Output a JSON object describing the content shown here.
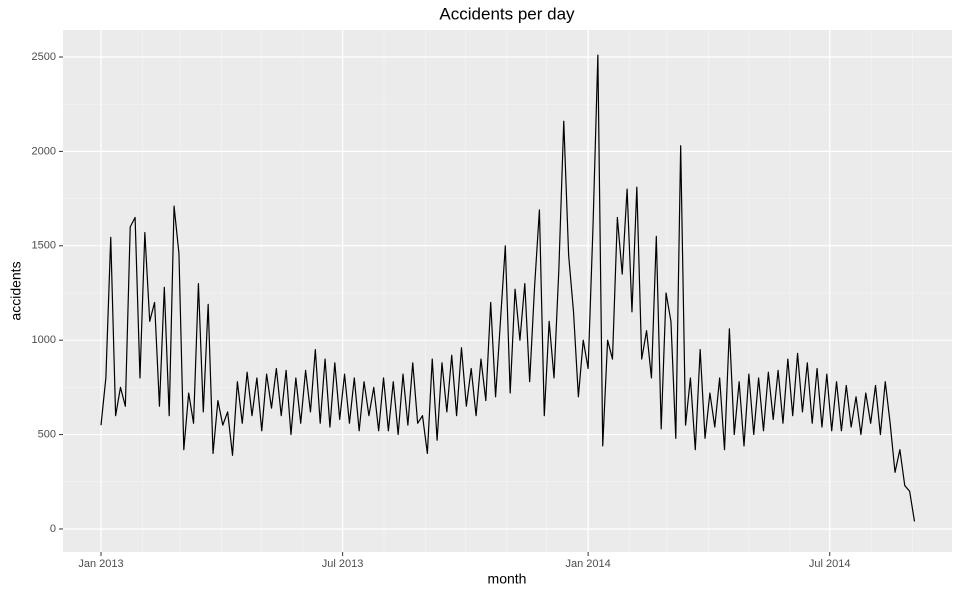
{
  "chart_data": {
    "type": "line",
    "title": "Accidents per day",
    "x_label": "month",
    "y_label": "accidents",
    "x": [
      2013.0,
      2013.01,
      2013.02,
      2013.03,
      2013.04,
      2013.05,
      2013.06,
      2013.07,
      2013.08,
      2013.09,
      2013.1,
      2013.11,
      2013.12,
      2013.13,
      2013.14,
      2013.15,
      2013.16,
      2013.17,
      2013.18,
      2013.19,
      2013.2,
      2013.21,
      2013.22,
      2013.23,
      2013.24,
      2013.25,
      2013.26,
      2013.27,
      2013.28,
      2013.29,
      2013.3,
      2013.31,
      2013.32,
      2013.33,
      2013.34,
      2013.35,
      2013.36,
      2013.37,
      2013.38,
      2013.39,
      2013.4,
      2013.41,
      2013.42,
      2013.43,
      2013.44,
      2013.45,
      2013.46,
      2013.47,
      2013.48,
      2013.49,
      2013.5,
      2013.51,
      2013.52,
      2013.53,
      2013.54,
      2013.55,
      2013.56,
      2013.57,
      2013.58,
      2013.59,
      2013.6,
      2013.61,
      2013.62,
      2013.63,
      2013.64,
      2013.65,
      2013.66,
      2013.67,
      2013.68,
      2013.69,
      2013.7,
      2013.71,
      2013.72,
      2013.73,
      2013.74,
      2013.75,
      2013.76,
      2013.77,
      2013.78,
      2013.79,
      2013.8,
      2013.81,
      2013.82,
      2013.83,
      2013.84,
      2013.85,
      2013.86,
      2013.87,
      2013.88,
      2013.89,
      2013.9,
      2013.91,
      2013.92,
      2013.93,
      2013.94,
      2013.95,
      2013.96,
      2013.97,
      2013.98,
      2013.99,
      2014.0,
      2014.01,
      2014.02,
      2014.03,
      2014.04,
      2014.05,
      2014.06,
      2014.07,
      2014.08,
      2014.09,
      2014.1,
      2014.11,
      2014.12,
      2014.13,
      2014.14,
      2014.15,
      2014.16,
      2014.17,
      2014.18,
      2014.19,
      2014.2,
      2014.21,
      2014.22,
      2014.23,
      2014.24,
      2014.25,
      2014.26,
      2014.27,
      2014.28,
      2014.29,
      2014.3,
      2014.31,
      2014.32,
      2014.33,
      2014.34,
      2014.35,
      2014.36,
      2014.37,
      2014.38,
      2014.39,
      2014.4,
      2014.41,
      2014.42,
      2014.43,
      2014.44,
      2014.45,
      2014.46,
      2014.47,
      2014.48,
      2014.49,
      2014.5,
      2014.51,
      2014.52,
      2014.53,
      2014.54,
      2014.55,
      2014.56,
      2014.57,
      2014.58,
      2014.59,
      2014.6,
      2014.61,
      2014.62,
      2014.63,
      2014.64,
      2014.65,
      2014.66,
      2014.67
    ],
    "series": [
      {
        "name": "accidents",
        "color": "#000000",
        "values": [
          550,
          800,
          1545,
          600,
          750,
          650,
          1600,
          1650,
          800,
          1570,
          1100,
          1200,
          650,
          1280,
          600,
          1710,
          1460,
          420,
          720,
          560,
          1300,
          620,
          1190,
          400,
          680,
          550,
          620,
          390,
          780,
          560,
          830,
          600,
          800,
          520,
          820,
          640,
          850,
          600,
          840,
          500,
          800,
          560,
          840,
          620,
          950,
          560,
          900,
          540,
          880,
          580,
          820,
          560,
          800,
          520,
          780,
          600,
          750,
          520,
          800,
          520,
          780,
          500,
          820,
          550,
          880,
          560,
          600,
          400,
          900,
          470,
          880,
          620,
          920,
          600,
          960,
          650,
          850,
          600,
          900,
          680,
          1200,
          700,
          1100,
          1500,
          720,
          1270,
          1000,
          1300,
          780,
          1280,
          1690,
          600,
          1100,
          800,
          1380,
          2160,
          1450,
          1150,
          700,
          1000,
          850,
          1600,
          2510,
          440,
          1000,
          900,
          1650,
          1350,
          1800,
          1150,
          1810,
          900,
          1050,
          800,
          1550,
          530,
          1250,
          1100,
          480,
          2030,
          550,
          800,
          420,
          950,
          480,
          720,
          540,
          800,
          420,
          1060,
          500,
          780,
          440,
          820,
          500,
          800,
          520,
          830,
          580,
          840,
          560,
          900,
          600,
          930,
          620,
          880,
          560,
          850,
          540,
          820,
          520,
          780,
          520,
          760,
          540,
          700,
          500,
          720,
          560,
          760,
          500,
          780,
          560,
          300,
          420,
          230,
          200,
          40
        ]
      }
    ],
    "xlim": [
      2012.922,
      2014.747
    ],
    "xticks": [
      {
        "value": 2013,
        "label": "Jan 2013"
      },
      {
        "value": 2013.496,
        "label": "Jul 2013"
      },
      {
        "value": 2014,
        "label": "Jan 2014"
      },
      {
        "value": 2014.496,
        "label": "Jul 2014"
      }
    ],
    "xminor": [
      2013.085,
      2013.162,
      2013.247,
      2013.329,
      2013.414,
      2013.581,
      2013.666,
      2013.748,
      2013.833,
      2013.915,
      2014.085,
      2014.162,
      2014.247,
      2014.329,
      2014.414,
      2014.581,
      2014.666
    ],
    "ylim": [
      -122,
      2643
    ],
    "yticks": [
      0,
      500,
      1000,
      1500,
      2000,
      2500
    ],
    "yminor": [
      250,
      750,
      1250,
      1750,
      2250
    ],
    "grid": true
  }
}
